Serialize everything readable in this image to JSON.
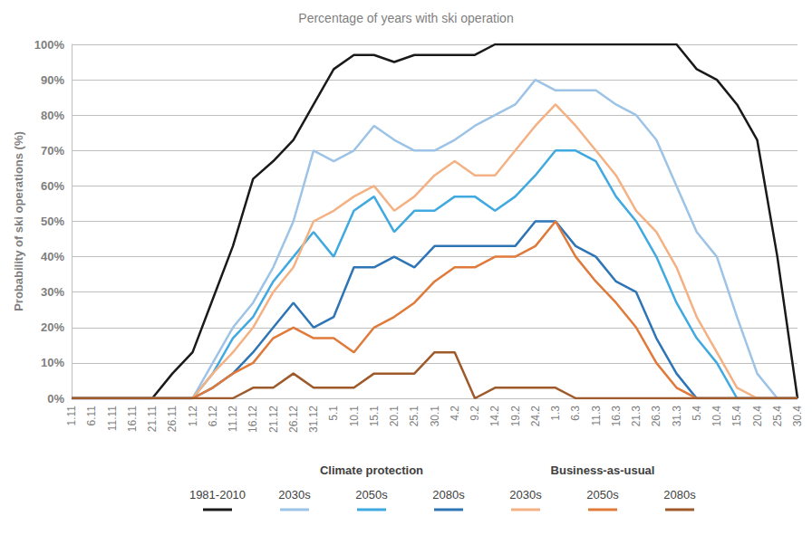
{
  "chart_data": {
    "type": "line",
    "title": "Percentage of years with ski operation",
    "y_label": "Probability of ski operations (%)",
    "annotations": [
      "Climate protection",
      "Business-as-usual"
    ],
    "categories": [
      "1.11",
      "6.11",
      "11.11",
      "16.11",
      "21.11",
      "26.11",
      "1.12",
      "6.12",
      "11.12",
      "16.12",
      "21.12",
      "26.12",
      "31.12",
      "5.1",
      "10.1",
      "15.1",
      "20.1",
      "25.1",
      "30.1",
      "4.2",
      "9.2",
      "14.2",
      "19.2",
      "24.2",
      "1.3",
      "6.3",
      "11.3",
      "16.3",
      "21.3",
      "26.3",
      "31.3",
      "5.4",
      "10.4",
      "15.4",
      "20.4",
      "25.4",
      "30.4"
    ],
    "ylim": [
      0,
      100
    ],
    "yticks": [
      {
        "value": 0,
        "label": "0%"
      },
      {
        "value": 10,
        "label": "10%"
      },
      {
        "value": 20,
        "label": "20%"
      },
      {
        "value": 30,
        "label": "30%"
      },
      {
        "value": 40,
        "label": "40%"
      },
      {
        "value": 50,
        "label": "50%"
      },
      {
        "value": 60,
        "label": "60%"
      },
      {
        "value": 70,
        "label": "70%"
      },
      {
        "value": 80,
        "label": "80%"
      },
      {
        "value": 90,
        "label": "90%"
      },
      {
        "value": 100,
        "label": "100%"
      }
    ],
    "grid": true,
    "series": [
      {
        "name": "1981-2010",
        "color": "#1a1a1a",
        "values": [
          0,
          0,
          0,
          0,
          0,
          7,
          13,
          28,
          43,
          62,
          67,
          73,
          83,
          93,
          97,
          97,
          95,
          97,
          97,
          97,
          97,
          100,
          100,
          100,
          100,
          100,
          100,
          100,
          100,
          100,
          100,
          93,
          90,
          83,
          73,
          40,
          0
        ]
      },
      {
        "name": "2030s",
        "color": "#9dc3e6",
        "values": [
          0,
          0,
          0,
          0,
          0,
          0,
          0,
          10,
          20,
          27,
          37,
          50,
          70,
          67,
          70,
          77,
          73,
          70,
          70,
          73,
          77,
          80,
          83,
          90,
          87,
          87,
          87,
          83,
          80,
          73,
          60,
          47,
          40,
          23,
          7,
          0,
          0
        ]
      },
      {
        "name": "2050s",
        "color": "#3fa9e0",
        "values": [
          0,
          0,
          0,
          0,
          0,
          0,
          0,
          7,
          17,
          23,
          33,
          40,
          47,
          40,
          53,
          57,
          47,
          53,
          53,
          57,
          57,
          53,
          57,
          63,
          70,
          70,
          67,
          57,
          50,
          40,
          27,
          17,
          10,
          0,
          0,
          0,
          0
        ]
      },
      {
        "name": "2080s",
        "color": "#2e75b6",
        "values": [
          0,
          0,
          0,
          0,
          0,
          0,
          0,
          3,
          7,
          13,
          20,
          27,
          20,
          23,
          37,
          37,
          40,
          37,
          43,
          43,
          43,
          43,
          43,
          50,
          50,
          43,
          40,
          33,
          30,
          17,
          7,
          0,
          0,
          0,
          0,
          0,
          0
        ]
      },
      {
        "name": "2030s",
        "color": "#f4b183",
        "values": [
          0,
          0,
          0,
          0,
          0,
          0,
          0,
          7,
          13,
          20,
          30,
          37,
          50,
          53,
          57,
          60,
          53,
          57,
          63,
          67,
          63,
          63,
          70,
          77,
          83,
          77,
          70,
          63,
          53,
          47,
          37,
          23,
          13,
          3,
          0,
          0,
          0
        ]
      },
      {
        "name": "2050s",
        "color": "#e07a3a",
        "values": [
          0,
          0,
          0,
          0,
          0,
          0,
          0,
          3,
          7,
          10,
          17,
          20,
          17,
          17,
          13,
          20,
          23,
          27,
          33,
          37,
          37,
          40,
          40,
          43,
          50,
          40,
          33,
          27,
          20,
          10,
          3,
          0,
          0,
          0,
          0,
          0,
          0
        ]
      },
      {
        "name": "2080s",
        "color": "#9e5a2a",
        "values": [
          0,
          0,
          0,
          0,
          0,
          0,
          0,
          0,
          0,
          3,
          3,
          7,
          3,
          3,
          3,
          7,
          7,
          7,
          13,
          13,
          0,
          3,
          3,
          3,
          3,
          0,
          0,
          0,
          0,
          0,
          0,
          0,
          0,
          0,
          0,
          0,
          0
        ]
      }
    ]
  }
}
